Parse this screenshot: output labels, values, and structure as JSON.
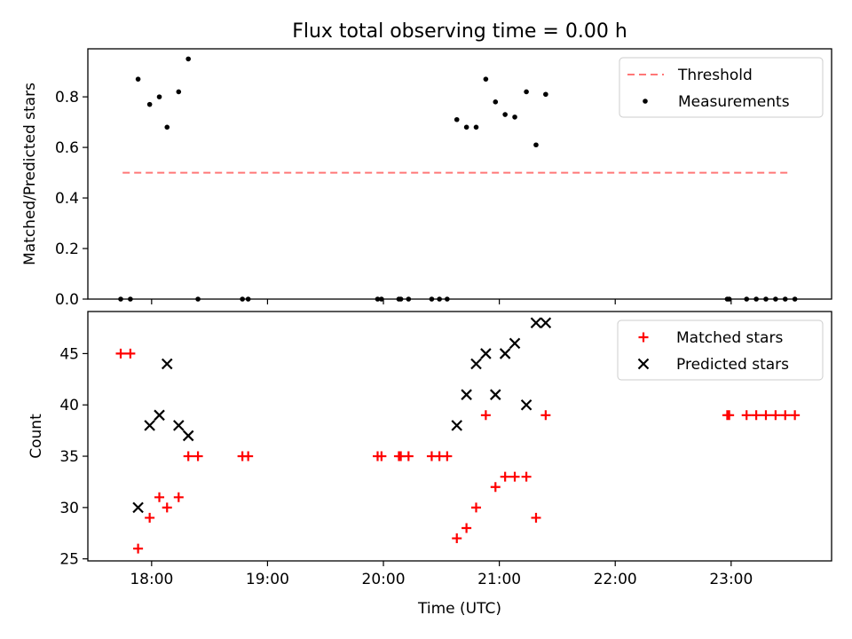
{
  "figure_title": "Flux total observing time = 0.00 h",
  "colors": {
    "threshold": "#ff7777",
    "measurements": "#000000",
    "matched": "#ff0000",
    "predicted": "#000000"
  },
  "chart_data": [
    {
      "type": "scatter",
      "title": "Flux total observing time = 0.00 h",
      "xlabel": "",
      "ylabel": "Matched/Predicted stars",
      "xlim": [
        "17:27",
        "23:52"
      ],
      "ylim": [
        0,
        0.99
      ],
      "yticks": [
        "0.0",
        "0.2",
        "0.4",
        "0.6",
        "0.8"
      ],
      "ytick_values": [
        0,
        0.2,
        0.4,
        0.6,
        0.8
      ],
      "grid": false,
      "legend": "top-right",
      "series": [
        {
          "name": "Threshold",
          "kind": "dashed-line",
          "points": [
            [
              "17:45",
              0.5
            ],
            [
              "23:30",
              0.5
            ]
          ]
        },
        {
          "name": "Measurements",
          "kind": "dot",
          "points": [
            [
              "17:44",
              0
            ],
            [
              "17:49",
              0
            ],
            [
              "17:53",
              0.87
            ],
            [
              "17:59",
              0.77
            ],
            [
              "18:04",
              0.8
            ],
            [
              "18:08",
              0.68
            ],
            [
              "18:14",
              0.82
            ],
            [
              "18:19",
              0.95
            ],
            [
              "18:24",
              0
            ],
            [
              "18:47",
              0
            ],
            [
              "18:50",
              0
            ],
            [
              "19:57",
              0
            ],
            [
              "19:59",
              0
            ],
            [
              "20:08",
              0
            ],
            [
              "20:09",
              0
            ],
            [
              "20:13",
              0
            ],
            [
              "20:25",
              0
            ],
            [
              "20:29",
              0
            ],
            [
              "20:33",
              0
            ],
            [
              "20:38",
              0.71
            ],
            [
              "20:43",
              0.68
            ],
            [
              "20:48",
              0.68
            ],
            [
              "20:53",
              0.87
            ],
            [
              "20:58",
              0.78
            ],
            [
              "21:03",
              0.73
            ],
            [
              "21:08",
              0.72
            ],
            [
              "21:14",
              0.82
            ],
            [
              "21:19",
              0.61
            ],
            [
              "21:24",
              0.81
            ],
            [
              "22:58",
              0
            ],
            [
              "22:59",
              0
            ],
            [
              "23:08",
              0
            ],
            [
              "23:13",
              0
            ],
            [
              "23:18",
              0
            ],
            [
              "23:23",
              0
            ],
            [
              "23:28",
              0
            ],
            [
              "23:33",
              0
            ]
          ]
        }
      ]
    },
    {
      "type": "scatter",
      "title": "",
      "xlabel": "Time (UTC)",
      "ylabel": "Count",
      "xlim": [
        "17:27",
        "23:52"
      ],
      "ylim": [
        24.8,
        49.1
      ],
      "xticks": [
        "18:00",
        "19:00",
        "20:00",
        "21:00",
        "22:00",
        "23:00"
      ],
      "yticks": [
        "25",
        "30",
        "35",
        "40",
        "45"
      ],
      "ytick_values": [
        25,
        30,
        35,
        40,
        45
      ],
      "grid": false,
      "legend": "top-right",
      "series": [
        {
          "name": "Matched stars",
          "marker": "+",
          "points": [
            [
              "17:44",
              45
            ],
            [
              "17:49",
              45
            ],
            [
              "17:53",
              26
            ],
            [
              "17:59",
              29
            ],
            [
              "18:04",
              31
            ],
            [
              "18:08",
              30
            ],
            [
              "18:14",
              31
            ],
            [
              "18:19",
              35
            ],
            [
              "18:24",
              35
            ],
            [
              "18:47",
              35
            ],
            [
              "18:50",
              35
            ],
            [
              "19:57",
              35
            ],
            [
              "19:59",
              35
            ],
            [
              "20:08",
              35
            ],
            [
              "20:09",
              35
            ],
            [
              "20:13",
              35
            ],
            [
              "20:25",
              35
            ],
            [
              "20:29",
              35
            ],
            [
              "20:33",
              35
            ],
            [
              "20:38",
              27
            ],
            [
              "20:43",
              28
            ],
            [
              "20:48",
              30
            ],
            [
              "20:53",
              39
            ],
            [
              "20:58",
              32
            ],
            [
              "21:03",
              33
            ],
            [
              "21:08",
              33
            ],
            [
              "21:14",
              33
            ],
            [
              "21:19",
              29
            ],
            [
              "21:24",
              39
            ],
            [
              "22:58",
              39
            ],
            [
              "22:59",
              39
            ],
            [
              "23:08",
              39
            ],
            [
              "23:13",
              39
            ],
            [
              "23:18",
              39
            ],
            [
              "23:23",
              39
            ],
            [
              "23:28",
              39
            ],
            [
              "23:33",
              39
            ]
          ]
        },
        {
          "name": "Predicted stars",
          "marker": "x",
          "points": [
            [
              "17:53",
              30
            ],
            [
              "17:59",
              38
            ],
            [
              "18:04",
              39
            ],
            [
              "18:08",
              44
            ],
            [
              "18:14",
              38
            ],
            [
              "18:19",
              37
            ],
            [
              "20:38",
              38
            ],
            [
              "20:43",
              41
            ],
            [
              "20:48",
              44
            ],
            [
              "20:53",
              45
            ],
            [
              "20:58",
              41
            ],
            [
              "21:03",
              45
            ],
            [
              "21:08",
              46
            ],
            [
              "21:14",
              40
            ],
            [
              "21:19",
              48
            ],
            [
              "21:24",
              48
            ]
          ]
        }
      ]
    }
  ]
}
